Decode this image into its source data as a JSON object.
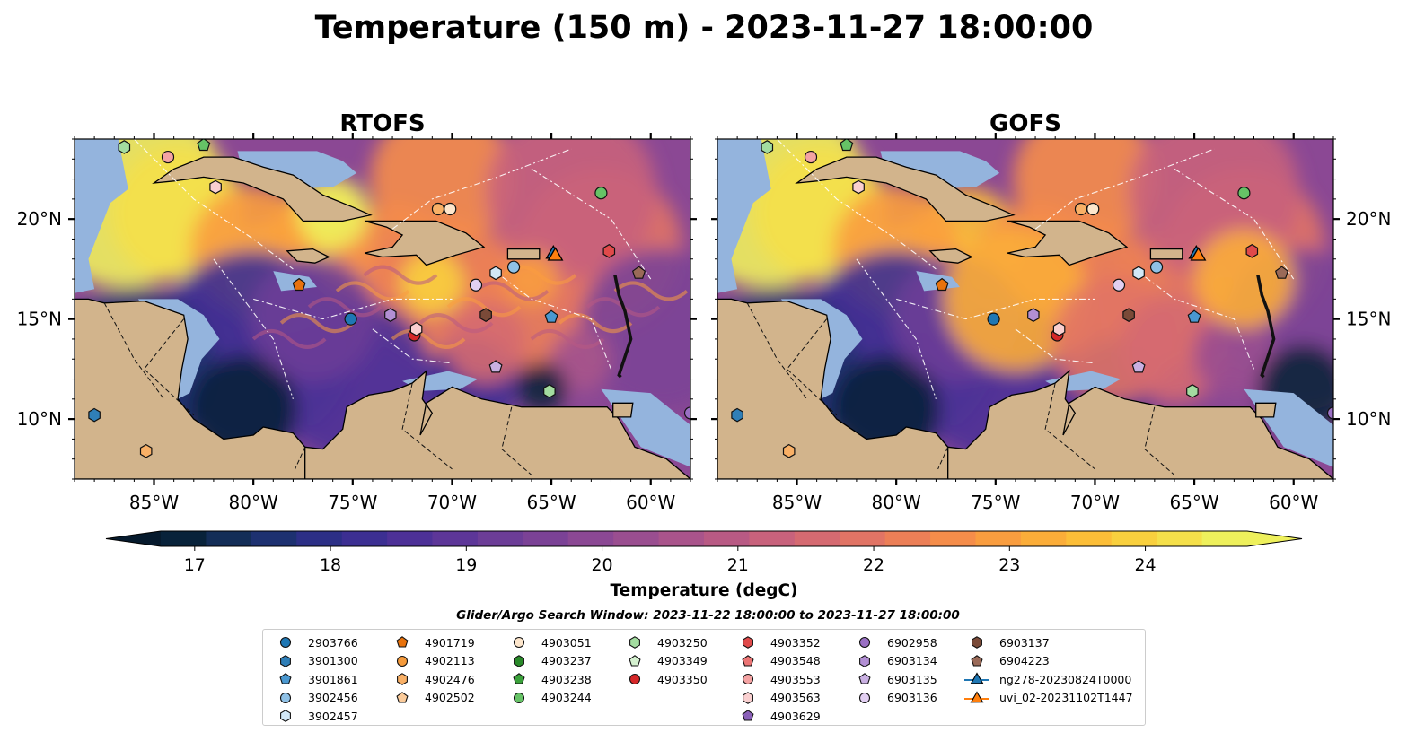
{
  "figure": {
    "title": "Temperature (150 m) - 2023-11-27 18:00:00"
  },
  "panels": [
    {
      "id": "rtofs",
      "title": "RTOFS",
      "ytick_side": "left"
    },
    {
      "id": "gofs",
      "title": "GOFS",
      "ytick_side": "right"
    }
  ],
  "axes": {
    "lon_ticks": [
      "85°W",
      "80°W",
      "75°W",
      "70°W",
      "65°W",
      "60°W"
    ],
    "lat_ticks": [
      "20°N",
      "15°N",
      "10°N"
    ],
    "lon_values": [
      -85,
      -80,
      -75,
      -70,
      -65,
      -60
    ],
    "lat_values": [
      20,
      15,
      10
    ],
    "lon_range": [
      -89,
      -58
    ],
    "lat_range": [
      7,
      24
    ]
  },
  "colorbar": {
    "label": "Temperature (degC)",
    "ticks": [
      "17",
      "18",
      "19",
      "20",
      "21",
      "22",
      "23",
      "24"
    ],
    "tick_values": [
      17,
      18,
      19,
      20,
      21,
      22,
      23,
      24
    ],
    "range": [
      16.75,
      24.75
    ],
    "extend": "both",
    "colors": [
      "#08223a",
      "#132d57",
      "#1d3170",
      "#2c2f86",
      "#3c2f92",
      "#4d3197",
      "#5d3698",
      "#6c3d97",
      "#7b4296",
      "#8b4894",
      "#9a4e90",
      "#a9548b",
      "#b85a84",
      "#c8627c",
      "#d56a71",
      "#e17465",
      "#ec7f57",
      "#f58d4a",
      "#f99d3f",
      "#fbad39",
      "#fcbe38",
      "#f9d03e",
      "#f5e04a",
      "#eef05c"
    ]
  },
  "legend": {
    "title": "Glider/Argo Search Window: 2023-11-22 18:00:00 to 2023-11-27 18:00:00",
    "items": [
      {
        "label": "2903766",
        "marker": "circle",
        "color": "#1f77b4"
      },
      {
        "label": "3901300",
        "marker": "hexagon",
        "color": "#2f7fb8"
      },
      {
        "label": "3901861",
        "marker": "pentagon",
        "color": "#4a98d0"
      },
      {
        "label": "3902456",
        "marker": "circle",
        "color": "#8fc1e6"
      },
      {
        "label": "3902457",
        "marker": "hexagon",
        "color": "#d2e8f7"
      },
      {
        "label": "4901719",
        "marker": "pentagon",
        "color": "#e8720c"
      },
      {
        "label": "4902113",
        "marker": "circle",
        "color": "#f59a3b"
      },
      {
        "label": "4902476",
        "marker": "hexagon",
        "color": "#f9b066"
      },
      {
        "label": "4902502",
        "marker": "pentagon",
        "color": "#fbcb9a"
      },
      {
        "label": "4903051",
        "marker": "circle",
        "color": "#fde6cc"
      },
      {
        "label": "4903237",
        "marker": "hexagon",
        "color": "#2a8a2a"
      },
      {
        "label": "4903238",
        "marker": "pentagon",
        "color": "#3aa13a"
      },
      {
        "label": "4903244",
        "marker": "circle",
        "color": "#66c266"
      },
      {
        "label": "4903250",
        "marker": "hexagon",
        "color": "#a3dca0"
      },
      {
        "label": "4903349",
        "marker": "pentagon",
        "color": "#d4f0cf"
      },
      {
        "label": "4903350",
        "marker": "circle",
        "color": "#d62728"
      },
      {
        "label": "4903352",
        "marker": "hexagon",
        "color": "#e04a4a"
      },
      {
        "label": "4903548",
        "marker": "pentagon",
        "color": "#eb7474"
      },
      {
        "label": "4903553",
        "marker": "circle",
        "color": "#f4a3a3"
      },
      {
        "label": "4903563",
        "marker": "hexagon",
        "color": "#fad0d0"
      },
      {
        "label": "4903629",
        "marker": "pentagon",
        "color": "#8a60b8"
      },
      {
        "label": "6902958",
        "marker": "circle",
        "color": "#9a70c4"
      },
      {
        "label": "6903134",
        "marker": "hexagon",
        "color": "#b28fd4"
      },
      {
        "label": "6903135",
        "marker": "pentagon",
        "color": "#c9b0e2"
      },
      {
        "label": "6903136",
        "marker": "circle",
        "color": "#e2cff2"
      },
      {
        "label": "6903137",
        "marker": "hexagon",
        "color": "#7a4a38"
      },
      {
        "label": "6904223",
        "marker": "pentagon",
        "color": "#9a6a58"
      },
      {
        "label": "ng278-20230824T0000",
        "marker": "triangle-line",
        "color": "#1f77b4"
      },
      {
        "label": "uvi_02-20231102T1447",
        "marker": "triangle-line",
        "color": "#ff7f0e"
      }
    ]
  },
  "floats": [
    {
      "lon": -86.5,
      "lat": 23.6,
      "marker": "hexagon",
      "color": "#a3dca0"
    },
    {
      "lon": -84.3,
      "lat": 23.1,
      "marker": "circle",
      "color": "#f4a3a3"
    },
    {
      "lon": -82.5,
      "lat": 23.7,
      "marker": "pentagon",
      "color": "#66c266"
    },
    {
      "lon": -81.9,
      "lat": 21.6,
      "marker": "hexagon",
      "color": "#fad0d0"
    },
    {
      "lon": -70.7,
      "lat": 20.5,
      "marker": "circle",
      "color": "#f9b066"
    },
    {
      "lon": -70.1,
      "lat": 20.5,
      "marker": "circle",
      "color": "#fde6cc"
    },
    {
      "lon": -62.5,
      "lat": 21.3,
      "marker": "circle",
      "color": "#66c266"
    },
    {
      "lon": -62.1,
      "lat": 18.4,
      "marker": "hexagon",
      "color": "#e04a4a"
    },
    {
      "lon": -67.8,
      "lat": 17.3,
      "marker": "hexagon",
      "color": "#d2e8f7"
    },
    {
      "lon": -66.9,
      "lat": 17.6,
      "marker": "circle",
      "color": "#8fc1e6"
    },
    {
      "lon": -60.6,
      "lat": 17.3,
      "marker": "pentagon",
      "color": "#9a6a58"
    },
    {
      "lon": -77.7,
      "lat": 16.7,
      "marker": "pentagon",
      "color": "#e8720c"
    },
    {
      "lon": -68.8,
      "lat": 16.7,
      "marker": "circle",
      "color": "#e2cff2"
    },
    {
      "lon": -75.1,
      "lat": 15.0,
      "marker": "circle",
      "color": "#1f77b4"
    },
    {
      "lon": -73.1,
      "lat": 15.2,
      "marker": "hexagon",
      "color": "#b28fd4"
    },
    {
      "lon": -68.3,
      "lat": 15.2,
      "marker": "hexagon",
      "color": "#7a4a38"
    },
    {
      "lon": -65.0,
      "lat": 15.1,
      "marker": "pentagon",
      "color": "#4a98d0"
    },
    {
      "lon": -71.9,
      "lat": 14.2,
      "marker": "circle",
      "color": "#d62728"
    },
    {
      "lon": -71.8,
      "lat": 14.5,
      "marker": "hexagon",
      "color": "#fad0d0"
    },
    {
      "lon": -67.8,
      "lat": 12.6,
      "marker": "pentagon",
      "color": "#c9b0e2"
    },
    {
      "lon": -65.1,
      "lat": 11.4,
      "marker": "hexagon",
      "color": "#a3dca0"
    },
    {
      "lon": -88.0,
      "lat": 10.2,
      "marker": "hexagon",
      "color": "#2f7fb8"
    },
    {
      "lon": -85.4,
      "lat": 8.4,
      "marker": "hexagon",
      "color": "#f9b066"
    },
    {
      "lon": -58.0,
      "lat": 10.3,
      "marker": "circle",
      "color": "#9a70c4"
    }
  ],
  "gliders": [
    {
      "lon": -64.9,
      "lat": 18.2,
      "color": "#1f77b4"
    },
    {
      "lon": -64.8,
      "lat": 18.1,
      "color": "#ff7f0e"
    }
  ]
}
